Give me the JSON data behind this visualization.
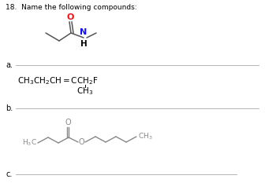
{
  "title": "18.  Name the following compounds:",
  "title_fontsize": 6.5,
  "background_color": "#ffffff",
  "text_color": "#000000",
  "label_a": "a.",
  "label_b": "b.",
  "label_c": "c.",
  "line_color": "#aaaaaa",
  "amide_bond_color": "#555555",
  "amide_O_color": "#ee1111",
  "amide_N_color": "#1111ee",
  "amide_H_color": "#000000",
  "ester_color": "#888888"
}
